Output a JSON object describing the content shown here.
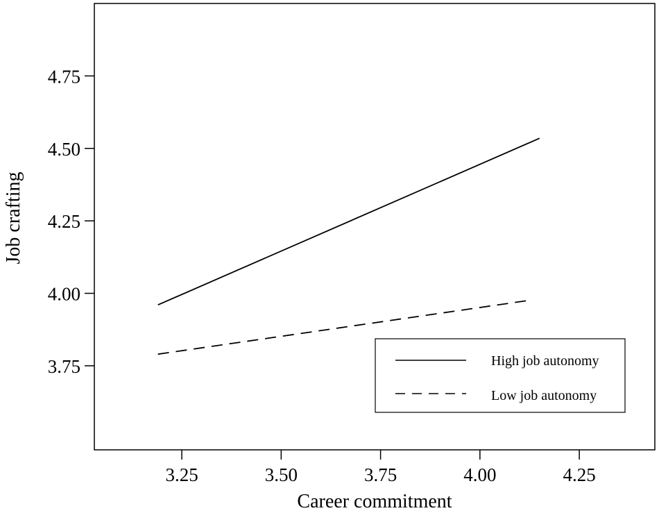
{
  "chart_data": {
    "type": "line",
    "title": "",
    "xlabel": "Career commitment",
    "ylabel": "Job crafting",
    "xlim": [
      3.03,
      4.44
    ],
    "ylim": [
      3.46,
      5.0
    ],
    "xticks": [
      3.25,
      3.5,
      3.75,
      4.0,
      4.25
    ],
    "xtick_labels": [
      "3.25",
      "3.50",
      "3.75",
      "4.00",
      "4.25"
    ],
    "yticks": [
      3.75,
      4.0,
      4.25,
      4.5,
      4.75
    ],
    "ytick_labels": [
      "3.75",
      "4.00",
      "4.25",
      "4.50",
      "4.75"
    ],
    "grid": false,
    "legend_position": "bottom-right",
    "series": [
      {
        "name": "High job autonomy",
        "style": "solid",
        "color": "#000000",
        "x": [
          3.19,
          4.15
        ],
        "y": [
          3.96,
          4.535
        ]
      },
      {
        "name": "Low job autonomy",
        "style": "dashed",
        "color": "#000000",
        "x": [
          3.19,
          4.12
        ],
        "y": [
          3.79,
          3.975
        ]
      }
    ]
  }
}
